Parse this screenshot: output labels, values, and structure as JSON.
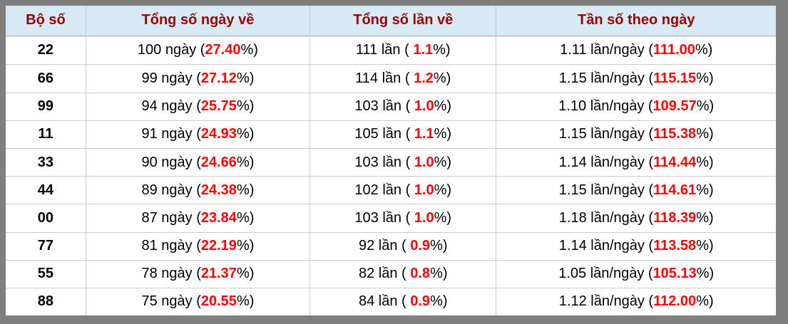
{
  "page": {
    "frame_color": "#7f7f7f",
    "header_bg": "#d8eaf6",
    "header_text_color": "#990000",
    "highlight_color": "#ff0000"
  },
  "table": {
    "headers": [
      "Bộ số",
      "Tổng số ngày về",
      "Tổng số lần về",
      "Tần số theo ngày"
    ],
    "rows": [
      {
        "pair": "22",
        "days": {
          "pre": "100 ngày (",
          "val": "27.40",
          "post": "%)"
        },
        "times": {
          "pre": "111 lần ( ",
          "val": "1.1",
          "post": "%)"
        },
        "freq": {
          "pre": "1.11 lần/ngày (",
          "val": "111.00",
          "post": "%)"
        }
      },
      {
        "pair": "66",
        "days": {
          "pre": "99 ngày (",
          "val": "27.12",
          "post": "%)"
        },
        "times": {
          "pre": "114 lần ( ",
          "val": "1.2",
          "post": "%)"
        },
        "freq": {
          "pre": "1.15 lần/ngày (",
          "val": "115.15",
          "post": "%)"
        }
      },
      {
        "pair": "99",
        "days": {
          "pre": "94 ngày (",
          "val": "25.75",
          "post": "%)"
        },
        "times": {
          "pre": "103 lần ( ",
          "val": "1.0",
          "post": "%)"
        },
        "freq": {
          "pre": "1.10 lần/ngày (",
          "val": "109.57",
          "post": "%)"
        }
      },
      {
        "pair": "11",
        "days": {
          "pre": "91 ngày (",
          "val": "24.93",
          "post": "%)"
        },
        "times": {
          "pre": "105 lần ( ",
          "val": "1.1",
          "post": "%)"
        },
        "freq": {
          "pre": "1.15 lần/ngày (",
          "val": "115.38",
          "post": "%)"
        }
      },
      {
        "pair": "33",
        "days": {
          "pre": "90 ngày (",
          "val": "24.66",
          "post": "%)"
        },
        "times": {
          "pre": "103 lần ( ",
          "val": "1.0",
          "post": "%)"
        },
        "freq": {
          "pre": "1.14 lần/ngày (",
          "val": "114.44",
          "post": "%)"
        }
      },
      {
        "pair": "44",
        "days": {
          "pre": "89 ngày (",
          "val": "24.38",
          "post": "%)"
        },
        "times": {
          "pre": "102 lần ( ",
          "val": "1.0",
          "post": "%)"
        },
        "freq": {
          "pre": "1.15 lần/ngày (",
          "val": "114.61",
          "post": "%)"
        }
      },
      {
        "pair": "00",
        "days": {
          "pre": "87 ngày (",
          "val": "23.84",
          "post": "%)"
        },
        "times": {
          "pre": "103 lần ( ",
          "val": "1.0",
          "post": "%)"
        },
        "freq": {
          "pre": "1.18 lần/ngày (",
          "val": "118.39",
          "post": "%)"
        }
      },
      {
        "pair": "77",
        "days": {
          "pre": "81 ngày (",
          "val": "22.19",
          "post": "%)"
        },
        "times": {
          "pre": "92 lần ( ",
          "val": "0.9",
          "post": "%)"
        },
        "freq": {
          "pre": "1.14 lần/ngày (",
          "val": "113.58",
          "post": "%)"
        }
      },
      {
        "pair": "55",
        "days": {
          "pre": "78 ngày (",
          "val": "21.37",
          "post": "%)"
        },
        "times": {
          "pre": "82 lần ( ",
          "val": "0.8",
          "post": "%)"
        },
        "freq": {
          "pre": "1.05 lần/ngày (",
          "val": "105.13",
          "post": "%)"
        }
      },
      {
        "pair": "88",
        "days": {
          "pre": "75 ngày (",
          "val": "20.55",
          "post": "%)"
        },
        "times": {
          "pre": "84 lần ( ",
          "val": "0.9",
          "post": "%)"
        },
        "freq": {
          "pre": "1.12 lần/ngày (",
          "val": "112.00",
          "post": "%)"
        }
      }
    ]
  }
}
